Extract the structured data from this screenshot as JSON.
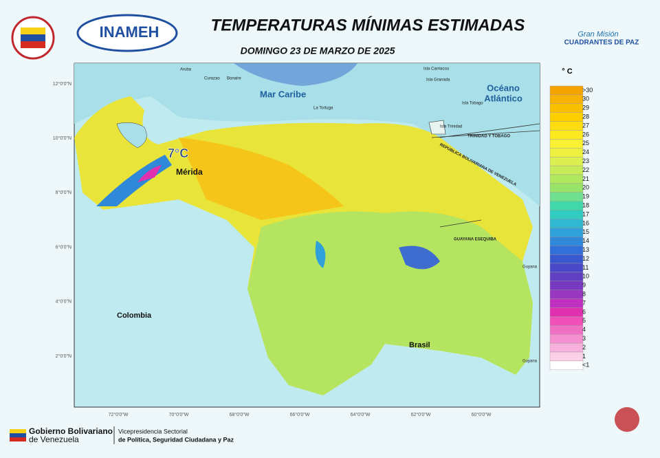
{
  "header": {
    "title": "TEMPERATURAS MÍNIMAS ESTIMADAS",
    "date": "DOMINGO 23 DE MARZO DE 2025",
    "left_logo": "INAMEH",
    "right_logo_top": "Gran Misión",
    "right_logo_bottom": "CUADRANTES DE PAZ"
  },
  "map": {
    "labels": {
      "aruba": "Aruba",
      "curazao": "Curazao",
      "bonaire": "Bonaire",
      "carriacou": "Isla Carriacou",
      "granada": "Isla Granada",
      "tobago": "Isla Tobago",
      "trinidad": "Isla Trinidad",
      "tortuga": "La Tortuga",
      "sea": "Mar Caribe",
      "ocean_1": "Océano",
      "ocean_2": "Atlántico",
      "tt": "TRINIDAD Y TOBAGO",
      "ve": "REPÚBLICA BOLIVARIANA DE VENEZUELA",
      "esequibo": "GUAYANA ESEQUIBA",
      "guyana_1": "Guyana",
      "guyana_2": "Guyana",
      "colombia": "Colombia",
      "brasil": "Brasil",
      "min_temp": "7°C",
      "min_city": "Mérida"
    },
    "latitudes": [
      "12°0'0\"N",
      "10°0'0\"N",
      "8°0'0\"N",
      "6°0'0\"N",
      "4°0'0\"N",
      "2°0'0\"N"
    ],
    "longitudes": [
      "72°0'0\"W",
      "70°0'0\"W",
      "68°0'0\"W",
      "66°0'0\"W",
      "64°0'0\"W",
      "62°0'0\"W",
      "60°0'0\"W"
    ]
  },
  "legend": {
    "unit": "° C",
    "items": [
      {
        "label": ">30",
        "color": "#f5a300"
      },
      {
        "label": 30,
        "color": "#f7b200"
      },
      {
        "label": 29,
        "color": "#f9c000"
      },
      {
        "label": 28,
        "color": "#fbcf00"
      },
      {
        "label": 27,
        "color": "#fddd10"
      },
      {
        "label": 26,
        "color": "#fde920"
      },
      {
        "label": 25,
        "color": "#f8f030"
      },
      {
        "label": 24,
        "color": "#eef040"
      },
      {
        "label": 23,
        "color": "#dcef50"
      },
      {
        "label": 22,
        "color": "#c8ec58"
      },
      {
        "label": 21,
        "color": "#b0e860"
      },
      {
        "label": 20,
        "color": "#98e468"
      },
      {
        "label": 19,
        "color": "#70e090"
      },
      {
        "label": 18,
        "color": "#40d8a8"
      },
      {
        "label": 17,
        "color": "#30ccc0"
      },
      {
        "label": 16,
        "color": "#30b8d0"
      },
      {
        "label": 15,
        "color": "#30a0d8"
      },
      {
        "label": 14,
        "color": "#3088d8"
      },
      {
        "label": 13,
        "color": "#3070d8"
      },
      {
        "label": 12,
        "color": "#3858d0"
      },
      {
        "label": 11,
        "color": "#4848c8"
      },
      {
        "label": 10,
        "color": "#6040c0"
      },
      {
        "label": 9,
        "color": "#7838c0"
      },
      {
        "label": 8,
        "color": "#9838c0"
      },
      {
        "label": 7,
        "color": "#c030c0"
      },
      {
        "label": 6,
        "color": "#e030b0"
      },
      {
        "label": 5,
        "color": "#f050b8"
      },
      {
        "label": 4,
        "color": "#f070c4"
      },
      {
        "label": 3,
        "color": "#f490d0"
      },
      {
        "label": 2,
        "color": "#f8b0dc"
      },
      {
        "label": 1,
        "color": "#fcd0e8"
      },
      {
        "label": "<1",
        "color": "#ffffff"
      }
    ]
  },
  "footer": {
    "gov_1": "Gobierno Bolivariano",
    "gov_2": "de Venezuela",
    "vice_1": "Vicepresidencia Sectorial",
    "vice_2": "de Política, Seguridad Ciudadana y Paz"
  }
}
